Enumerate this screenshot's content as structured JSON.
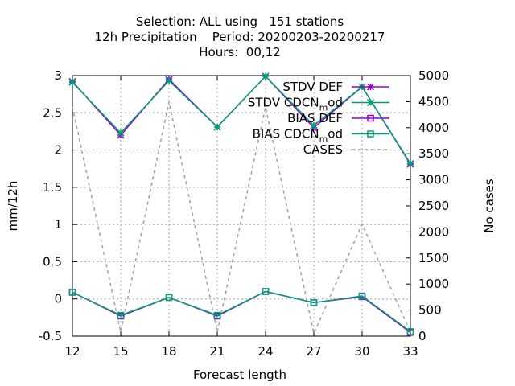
{
  "chart_data": {
    "type": "line",
    "title_lines": [
      "Selection: ALL using   151 stations",
      "12h Precipitation    Period: 20200203-20200217",
      "Hours:  00,12"
    ],
    "xlabel": "Forecast length",
    "ylabel": "mm/12h",
    "y2label": "No cases",
    "x": [
      12,
      15,
      18,
      21,
      24,
      27,
      30,
      33
    ],
    "xlim": [
      12,
      33
    ],
    "ylim": [
      -0.5,
      3
    ],
    "y2lim": [
      0,
      5000
    ],
    "yticks": [
      -0.5,
      0,
      0.5,
      1,
      1.5,
      2,
      2.5,
      3
    ],
    "ytick_labels": [
      "-0.5",
      "0",
      "0.5",
      "1",
      "1.5",
      "2",
      "2.5",
      "3"
    ],
    "y2ticks": [
      0,
      500,
      1000,
      1500,
      2000,
      2500,
      3000,
      3500,
      4000,
      4500,
      5000
    ],
    "y2tick_labels": [
      "0",
      "500",
      "1000",
      "1500",
      "2000",
      "2500",
      "3000",
      "3500",
      "4000",
      "4500",
      "5000"
    ],
    "xtick_labels": [
      "12",
      "15",
      "18",
      "21",
      "24",
      "27",
      "30",
      "33"
    ],
    "grid": true,
    "legend_position": "top-right",
    "series": [
      {
        "name": "STDV DEF",
        "axis": "y",
        "color": "#9400d3",
        "marker": "star",
        "dash": false,
        "values": [
          2.92,
          2.2,
          2.95,
          2.31,
          2.99,
          2.3,
          2.85,
          1.81
        ]
      },
      {
        "name": "STDV CDCN",
        "name_sub": "m",
        "name_after": "od",
        "axis": "y",
        "color": "#009e73",
        "marker": "star",
        "dash": false,
        "values": [
          2.91,
          2.23,
          2.93,
          2.31,
          2.99,
          2.33,
          2.85,
          1.82
        ]
      },
      {
        "name": "BIAS DEF",
        "axis": "y",
        "color": "#9400d3",
        "marker": "square",
        "dash": false,
        "values": [
          0.09,
          -0.23,
          0.02,
          -0.23,
          0.1,
          -0.05,
          0.03,
          -0.45
        ]
      },
      {
        "name": "BIAS CDCN",
        "name_sub": "m",
        "name_after": "od",
        "axis": "y",
        "color": "#009e73",
        "marker": "square",
        "dash": false,
        "values": [
          0.09,
          -0.22,
          0.02,
          -0.22,
          0.1,
          -0.05,
          0.04,
          -0.44
        ]
      },
      {
        "name": "CASES",
        "axis": "y2",
        "color": "#a0a0a0",
        "marker": "none",
        "dash": true,
        "values": [
          4400,
          80,
          4500,
          80,
          4400,
          50,
          2150,
          80
        ]
      }
    ]
  }
}
